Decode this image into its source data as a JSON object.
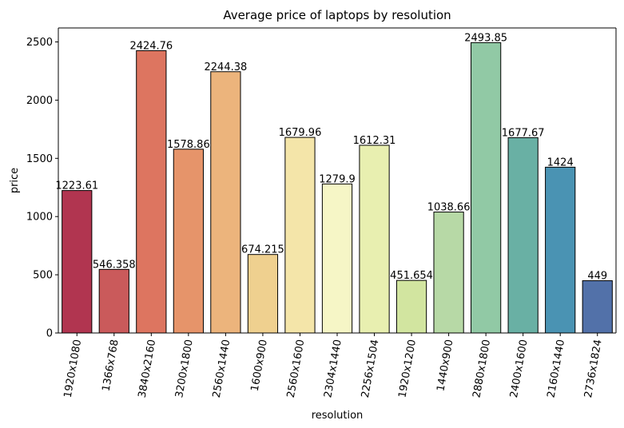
{
  "chart_data": {
    "type": "bar",
    "title": "Average price of laptops by resolution",
    "xlabel": "resolution",
    "ylabel": "price",
    "ylim": [
      0,
      2620
    ],
    "yticks": [
      0,
      500,
      1000,
      1500,
      2000,
      2500
    ],
    "grid": false,
    "categories": [
      "1920x1080",
      "1366x768",
      "3840x2160",
      "3200x1800",
      "2560x1440",
      "1600x900",
      "2560x1600",
      "2304x1440",
      "2256x1504",
      "1920x1200",
      "1440x900",
      "2880x1800",
      "2400x1600",
      "2160x1440",
      "2736x1824"
    ],
    "values": [
      1223.61,
      546.358,
      2424.76,
      1578.86,
      2244.38,
      674.215,
      1679.96,
      1279.9,
      1612.31,
      451.654,
      1038.66,
      2493.85,
      1677.67,
      1424,
      449
    ],
    "data_labels": [
      "1223.61",
      "546.358",
      "2424.76",
      "1578.86",
      "2244.38",
      "674.215",
      "1679.96",
      "1279.9",
      "1612.31",
      "451.654",
      "1038.66",
      "2493.85",
      "1677.67",
      "1424",
      "449"
    ],
    "colors": [
      "#b13550",
      "#ca5a5b",
      "#dd7560",
      "#e6946a",
      "#ecb47c",
      "#efd08f",
      "#f4e5a9",
      "#f6f6c6",
      "#e8efb0",
      "#d2e5a0",
      "#b7d9a6",
      "#91c9a5",
      "#69b0a4",
      "#4a93b3",
      "#5271a9"
    ],
    "x_tick_rotation": "80 degrees"
  }
}
